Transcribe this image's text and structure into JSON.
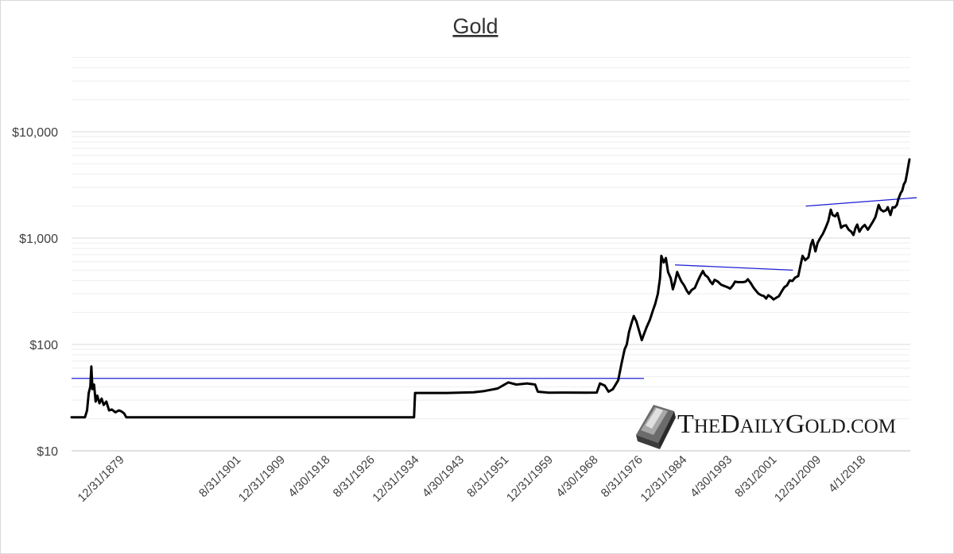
{
  "chart_data": {
    "type": "line",
    "title": "Gold",
    "xlabel": "",
    "ylabel": "",
    "y_scale": "log",
    "ylim": [
      10,
      50000
    ],
    "xlim": [
      1870.0,
      2026.5
    ],
    "y_ticks": [
      {
        "value": 10,
        "label": "$10"
      },
      {
        "value": 100,
        "label": "$100"
      },
      {
        "value": 1000,
        "label": "$1,000"
      },
      {
        "value": 10000,
        "label": "$10,000"
      }
    ],
    "x_ticks": [
      {
        "value": 1879.92,
        "label": "12/31/1879"
      },
      {
        "value": 1901.67,
        "label": "8/31/1901"
      },
      {
        "value": 1909.92,
        "label": "12/31/1909"
      },
      {
        "value": 1918.33,
        "label": "4/30/1918"
      },
      {
        "value": 1926.67,
        "label": "8/31/1926"
      },
      {
        "value": 1934.92,
        "label": "12/31/1934"
      },
      {
        "value": 1943.33,
        "label": "4/30/1943"
      },
      {
        "value": 1951.67,
        "label": "8/31/1951"
      },
      {
        "value": 1959.92,
        "label": "12/31/1959"
      },
      {
        "value": 1968.33,
        "label": "4/30/1968"
      },
      {
        "value": 1976.67,
        "label": "8/31/1976"
      },
      {
        "value": 1984.92,
        "label": "12/31/1984"
      },
      {
        "value": 1993.33,
        "label": "4/30/1993"
      },
      {
        "value": 2001.67,
        "label": "8/31/2001"
      },
      {
        "value": 2009.92,
        "label": "12/31/2009"
      },
      {
        "value": 2018.25,
        "label": "4/1/2018"
      }
    ],
    "grid": "horizontal",
    "series": [
      {
        "values": [
          [
            1870.0,
            20.67
          ],
          [
            1872.5,
            20.67
          ],
          [
            1872.9,
            24
          ],
          [
            1873.2,
            35
          ],
          [
            1873.5,
            40
          ],
          [
            1873.7,
            62
          ],
          [
            1873.9,
            38
          ],
          [
            1874.2,
            42
          ],
          [
            1874.5,
            29
          ],
          [
            1874.8,
            33
          ],
          [
            1875.2,
            28
          ],
          [
            1875.6,
            31
          ],
          [
            1876.0,
            27
          ],
          [
            1876.5,
            29
          ],
          [
            1877.0,
            24
          ],
          [
            1877.5,
            24.5
          ],
          [
            1878.2,
            23
          ],
          [
            1878.8,
            24
          ],
          [
            1879.3,
            23.5
          ],
          [
            1879.8,
            22.5
          ],
          [
            1880.2,
            20.67
          ],
          [
            1904.0,
            20.67
          ],
          [
            1933.9,
            20.67
          ],
          [
            1934.1,
            35
          ],
          [
            1940.0,
            35
          ],
          [
            1945.0,
            35.5
          ],
          [
            1947.0,
            36.5
          ],
          [
            1949.5,
            38.5
          ],
          [
            1951.5,
            44
          ],
          [
            1953.0,
            42
          ],
          [
            1955.0,
            43
          ],
          [
            1956.5,
            42
          ],
          [
            1957.0,
            36
          ],
          [
            1959.0,
            35.2
          ],
          [
            1962.0,
            35.3
          ],
          [
            1966.0,
            35.2
          ],
          [
            1968.0,
            35.3
          ],
          [
            1968.6,
            43
          ],
          [
            1969.5,
            41
          ],
          [
            1970.2,
            36
          ],
          [
            1971.0,
            38
          ],
          [
            1972.0,
            46
          ],
          [
            1972.6,
            65
          ],
          [
            1973.2,
            90
          ],
          [
            1973.6,
            100
          ],
          [
            1974.0,
            130
          ],
          [
            1974.5,
            160
          ],
          [
            1974.9,
            185
          ],
          [
            1975.4,
            165
          ],
          [
            1975.8,
            140
          ],
          [
            1976.4,
            110
          ],
          [
            1976.8,
            125
          ],
          [
            1977.3,
            145
          ],
          [
            1977.9,
            170
          ],
          [
            1978.5,
            210
          ],
          [
            1978.9,
            240
          ],
          [
            1979.4,
            300
          ],
          [
            1979.8,
            420
          ],
          [
            1980.06,
            680
          ],
          [
            1980.5,
            590
          ],
          [
            1980.9,
            650
          ],
          [
            1981.3,
            480
          ],
          [
            1981.8,
            420
          ],
          [
            1982.2,
            330
          ],
          [
            1982.6,
            390
          ],
          [
            1983.0,
            480
          ],
          [
            1983.4,
            430
          ],
          [
            1983.8,
            390
          ],
          [
            1984.3,
            360
          ],
          [
            1984.8,
            320
          ],
          [
            1985.2,
            300
          ],
          [
            1985.7,
            325
          ],
          [
            1986.3,
            340
          ],
          [
            1986.8,
            390
          ],
          [
            1987.3,
            440
          ],
          [
            1987.8,
            490
          ],
          [
            1988.2,
            450
          ],
          [
            1988.7,
            430
          ],
          [
            1989.2,
            390
          ],
          [
            1989.6,
            370
          ],
          [
            1990.0,
            405
          ],
          [
            1990.6,
            390
          ],
          [
            1991.2,
            365
          ],
          [
            1991.8,
            355
          ],
          [
            1992.4,
            345
          ],
          [
            1992.9,
            335
          ],
          [
            1993.4,
            360
          ],
          [
            1993.8,
            390
          ],
          [
            1994.3,
            385
          ],
          [
            1994.8,
            385
          ],
          [
            1995.3,
            385
          ],
          [
            1995.8,
            390
          ],
          [
            1996.2,
            410
          ],
          [
            1996.7,
            380
          ],
          [
            1997.2,
            345
          ],
          [
            1997.7,
            320
          ],
          [
            1998.2,
            300
          ],
          [
            1998.7,
            290
          ],
          [
            1999.2,
            285
          ],
          [
            1999.6,
            270
          ],
          [
            2000.0,
            290
          ],
          [
            2000.5,
            280
          ],
          [
            2001.0,
            265
          ],
          [
            2001.5,
            275
          ],
          [
            2002.0,
            285
          ],
          [
            2002.5,
            315
          ],
          [
            2003.0,
            345
          ],
          [
            2003.5,
            360
          ],
          [
            2004.0,
            400
          ],
          [
            2004.5,
            395
          ],
          [
            2005.0,
            425
          ],
          [
            2005.6,
            440
          ],
          [
            2006.0,
            550
          ],
          [
            2006.4,
            680
          ],
          [
            2006.9,
            620
          ],
          [
            2007.5,
            660
          ],
          [
            2008.0,
            880
          ],
          [
            2008.3,
            960
          ],
          [
            2008.8,
            750
          ],
          [
            2009.2,
            900
          ],
          [
            2009.7,
            1000
          ],
          [
            2010.2,
            1100
          ],
          [
            2010.7,
            1250
          ],
          [
            2011.2,
            1450
          ],
          [
            2011.67,
            1850
          ],
          [
            2012.0,
            1650
          ],
          [
            2012.5,
            1600
          ],
          [
            2012.9,
            1720
          ],
          [
            2013.3,
            1450
          ],
          [
            2013.6,
            1250
          ],
          [
            2014.0,
            1300
          ],
          [
            2014.5,
            1320
          ],
          [
            2015.0,
            1200
          ],
          [
            2015.5,
            1150
          ],
          [
            2015.9,
            1070
          ],
          [
            2016.3,
            1250
          ],
          [
            2016.6,
            1340
          ],
          [
            2017.0,
            1150
          ],
          [
            2017.5,
            1260
          ],
          [
            2018.0,
            1330
          ],
          [
            2018.6,
            1200
          ],
          [
            2019.0,
            1290
          ],
          [
            2019.5,
            1420
          ],
          [
            2020.0,
            1580
          ],
          [
            2020.6,
            2050
          ],
          [
            2021.0,
            1850
          ],
          [
            2021.5,
            1780
          ],
          [
            2022.0,
            1830
          ],
          [
            2022.3,
            1950
          ],
          [
            2022.8,
            1650
          ],
          [
            2023.2,
            1950
          ],
          [
            2023.6,
            1940
          ],
          [
            2024.0,
            2050
          ],
          [
            2024.3,
            2350
          ],
          [
            2024.7,
            2650
          ],
          [
            2025.0,
            2800
          ],
          [
            2025.3,
            3200
          ],
          [
            2025.6,
            3400
          ],
          [
            2025.9,
            4100
          ],
          [
            2026.2,
            5000
          ],
          [
            2026.35,
            5500
          ]
        ]
      }
    ],
    "annotations": [
      {
        "type": "trendline",
        "from": [
          1870.0,
          48
        ],
        "to": [
          1976.8,
          48
        ]
      },
      {
        "type": "trendline",
        "from": [
          1982.6,
          560
        ],
        "to": [
          2004.6,
          500
        ]
      },
      {
        "type": "trendline",
        "from": [
          2007.0,
          2000
        ],
        "to": [
          2027.7,
          2400
        ]
      }
    ]
  },
  "watermark": {
    "text_lead": "T",
    "text_rest_1": "HE",
    "text_lead_2": "D",
    "text_rest_2": "AILY",
    "text_lead_3": "G",
    "text_rest_3": "OLD",
    "text_tail": ".COM"
  },
  "colors": {
    "price_line": "#000000",
    "trend_line": "#1f1fd6",
    "grid": "#d9d9d9"
  }
}
